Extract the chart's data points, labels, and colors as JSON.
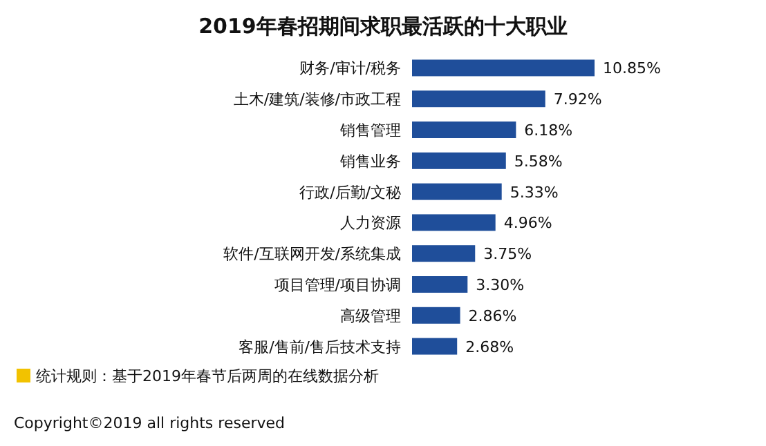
{
  "chart_data": {
    "type": "bar",
    "orientation": "horizontal",
    "title": "2019年春招期间求职最活跃的十大职业",
    "categories": [
      "财务/审计/税务",
      "土木/建筑/装修/市政工程",
      "销售管理",
      "销售业务",
      "行政/后勤/文秘",
      "人力资源",
      "软件/互联网开发/系统集成",
      "项目管理/项目协调",
      "高级管理",
      "客服/售前/售后技术支持"
    ],
    "values": [
      10.85,
      7.92,
      6.18,
      5.58,
      5.33,
      4.96,
      3.75,
      3.3,
      2.86,
      2.68
    ],
    "value_labels": [
      "10.85%",
      "7.92%",
      "6.18%",
      "5.58%",
      "5.33%",
      "4.96%",
      "3.75%",
      "3.30%",
      "2.86%",
      "2.68%"
    ],
    "color": "#1f4e9a",
    "annotations": [
      "统计规则：基于2019年春节后两周的在线数据分析",
      "Copyright©2019 all rights reserved"
    ]
  }
}
